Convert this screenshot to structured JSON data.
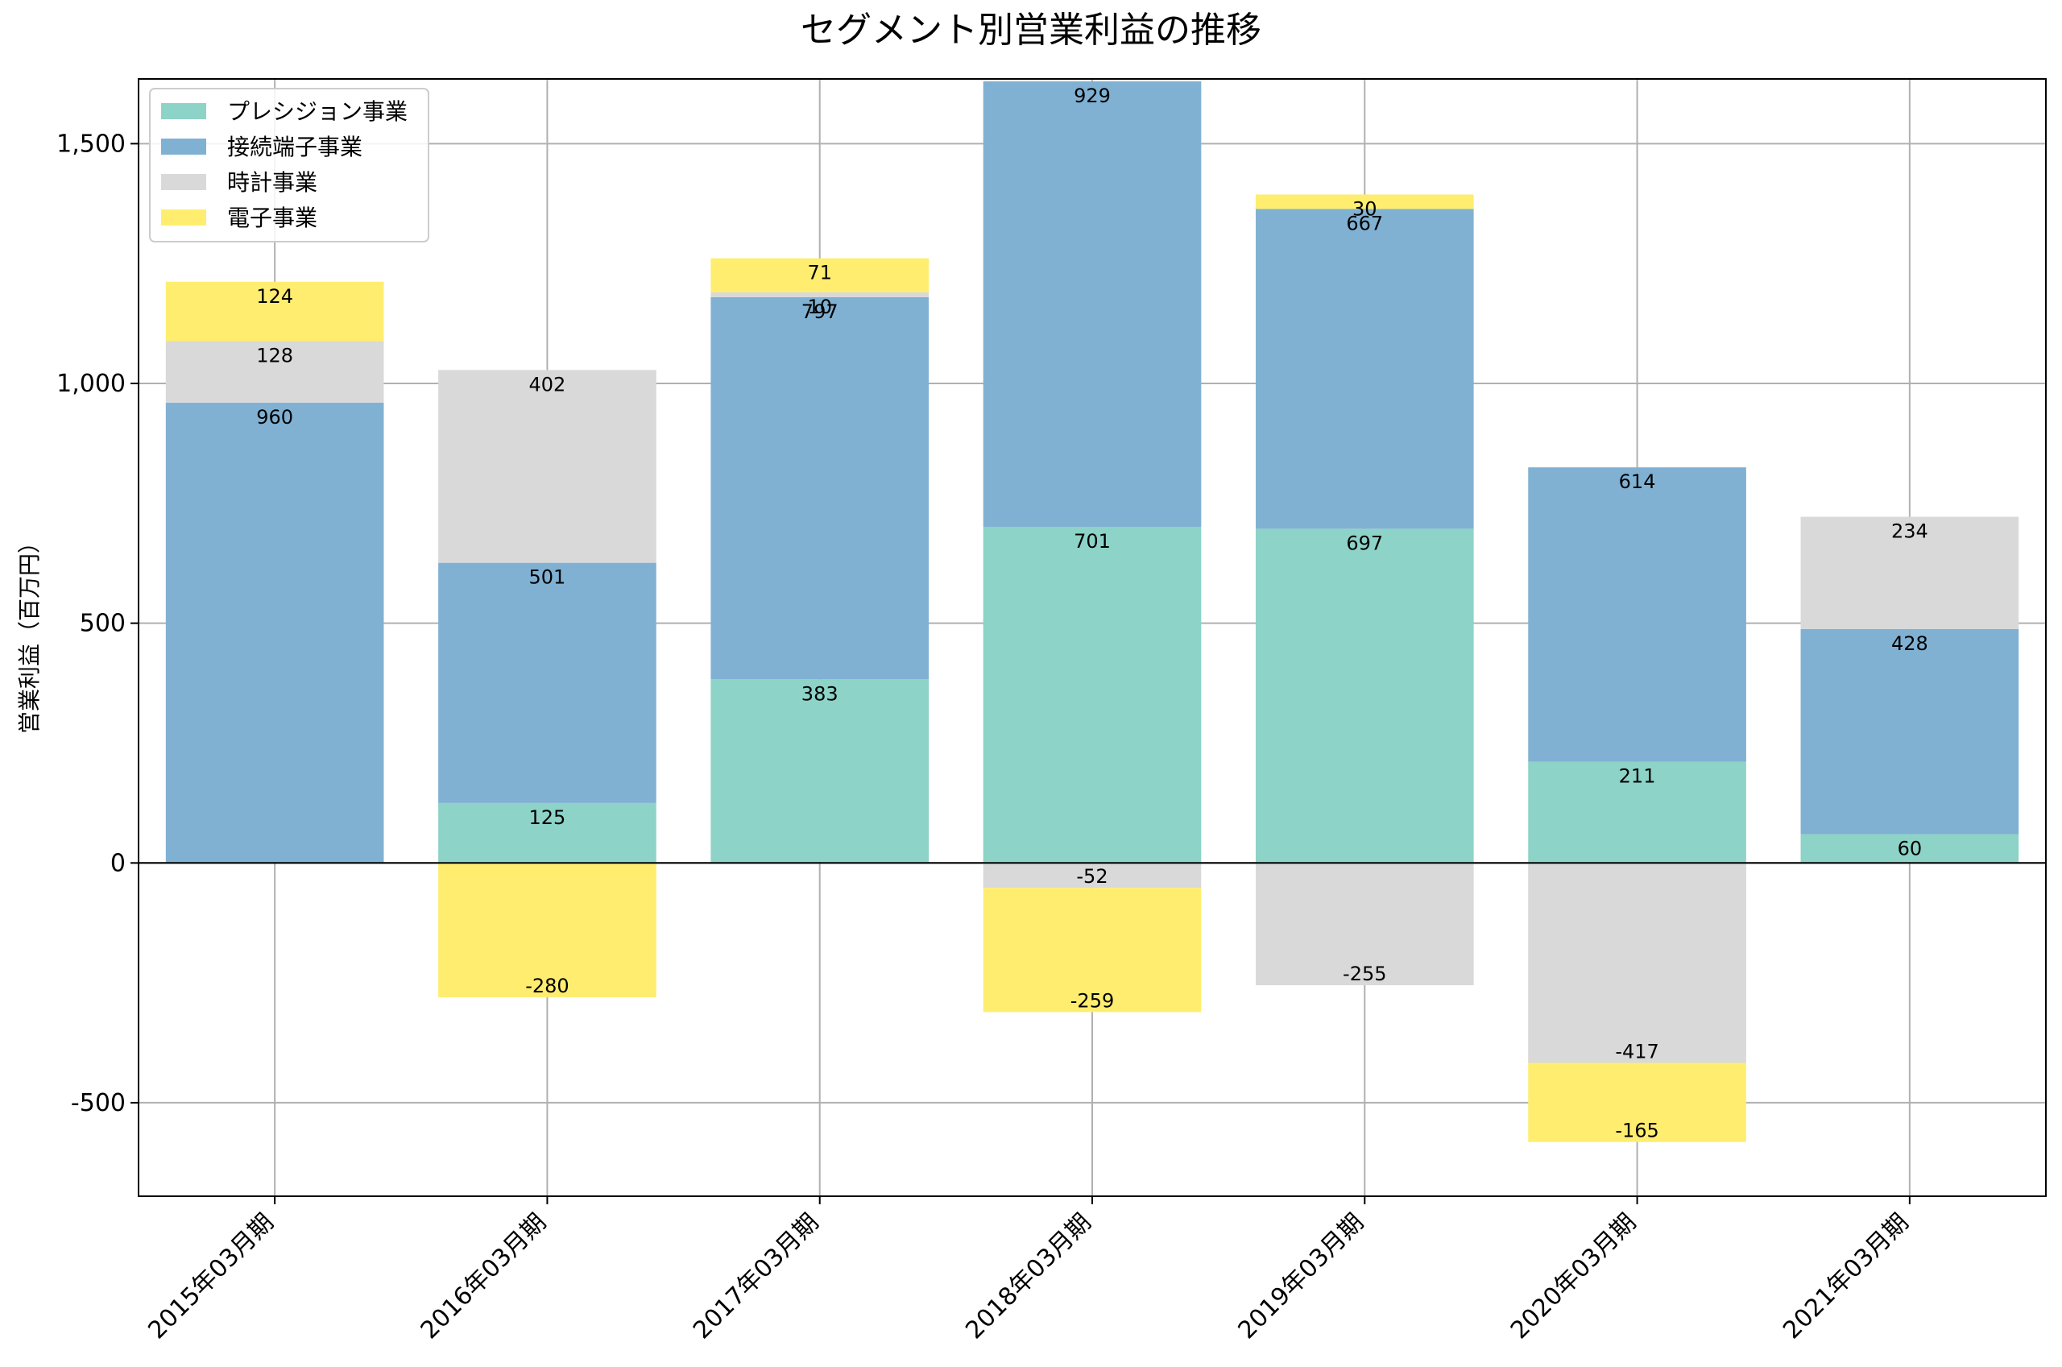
{
  "chart_data": {
    "type": "bar",
    "stacked": true,
    "title": "セグメント別営業利益の推移",
    "xlabel": "",
    "ylabel": "営業利益（百万円）",
    "ylim": [
      -695,
      1635
    ],
    "yticks": [
      -500,
      0,
      500,
      1000,
      1500
    ],
    "ytick_labels": [
      "-500",
      "0",
      "500",
      "1,000",
      "1,500"
    ],
    "grid": true,
    "legend_position": "top-left",
    "categories": [
      "2015年03月期",
      "2016年03月期",
      "2017年03月期",
      "2018年03月期",
      "2019年03月期",
      "2020年03月期",
      "2021年03月期"
    ],
    "series": [
      {
        "name": "プレシジョン事業",
        "color": "#8dd3c7",
        "values": [
          null,
          125,
          383,
          701,
          697,
          211,
          60
        ]
      },
      {
        "name": "接続端子事業",
        "color": "#80b1d3",
        "values": [
          960,
          501,
          797,
          929,
          667,
          614,
          428
        ]
      },
      {
        "name": "時計事業",
        "color": "#d9d9d9",
        "values": [
          128,
          402,
          10,
          -52,
          -255,
          -417,
          234
        ]
      },
      {
        "name": "電子事業",
        "color": "#ffed6f",
        "values": [
          124,
          -280,
          71,
          -259,
          30,
          -165,
          null
        ]
      }
    ]
  }
}
